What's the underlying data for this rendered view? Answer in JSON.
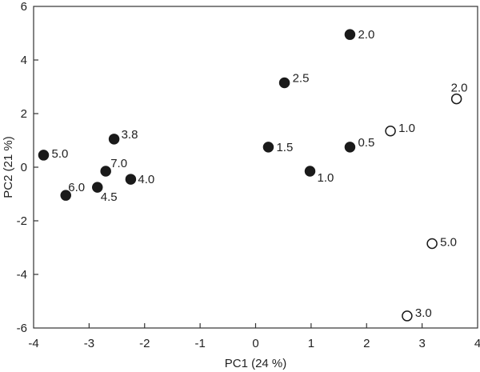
{
  "chart_data": {
    "type": "scatter",
    "xlabel": "PC1 (24 %)",
    "ylabel": "PC2 (21 %)",
    "xlim": [
      -4,
      4
    ],
    "ylim": [
      -6,
      6
    ],
    "xticks": [
      "-4",
      "-3",
      "-2",
      "-1",
      "0",
      "1",
      "2",
      "3",
      "4"
    ],
    "yticks": [
      "-6",
      "-4",
      "-2",
      "0",
      "2",
      "4",
      "6"
    ],
    "grid": false,
    "series": [
      {
        "marker": "filled-circle",
        "color": "#1a1a1a",
        "points": [
          {
            "x": 1.7,
            "y": 4.95,
            "label": "2.0"
          },
          {
            "x": 0.52,
            "y": 3.15,
            "label": "2.5"
          },
          {
            "x": 0.23,
            "y": 0.75,
            "label": "1.5"
          },
          {
            "x": 1.7,
            "y": 0.75,
            "label": "0.5"
          },
          {
            "x": 0.98,
            "y": -0.15,
            "label": "1.0"
          },
          {
            "x": -3.82,
            "y": 0.45,
            "label": "5.0"
          },
          {
            "x": -2.55,
            "y": 1.05,
            "label": "3.8"
          },
          {
            "x": -2.7,
            "y": -0.15,
            "label": "7.0"
          },
          {
            "x": -2.25,
            "y": -0.45,
            "label": "4.0"
          },
          {
            "x": -2.85,
            "y": -0.75,
            "label": "4.5"
          },
          {
            "x": -3.42,
            "y": -1.05,
            "label": "6.0"
          }
        ]
      },
      {
        "marker": "open-circle",
        "color": "#1a1a1a",
        "points": [
          {
            "x": 3.62,
            "y": 2.55,
            "label": "2.0"
          },
          {
            "x": 2.43,
            "y": 1.35,
            "label": "1.0"
          },
          {
            "x": 3.18,
            "y": -2.85,
            "label": "5.0"
          },
          {
            "x": 2.73,
            "y": -5.55,
            "label": "3.0"
          }
        ]
      }
    ]
  }
}
